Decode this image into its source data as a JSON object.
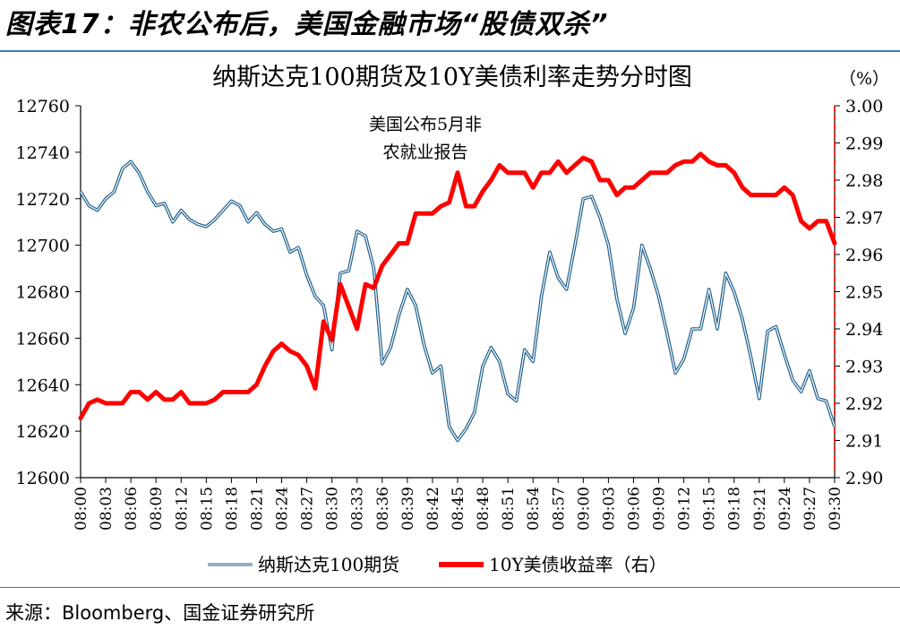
{
  "figure": {
    "title": "图表17：非农公布后，美国金融市场“股债双杀”",
    "source": "来源：Bloomberg、国金证券研究所"
  },
  "colors": {
    "nasdaq": "#1f5f8b",
    "yield": "#ff0000",
    "rule": "#3d78b5",
    "event_line": "#ff0000"
  },
  "chart_data": {
    "type": "line",
    "title": "纳斯达克100期货及10Y美债利率走势分时图",
    "right_unit": "（%）",
    "annotation": {
      "text_line1": "美国公布5月非",
      "text_line2": "农就业报告",
      "x_index": 30
    },
    "left_axis": {
      "min": 12600,
      "max": 12760,
      "ticks": [
        "12600",
        "12620",
        "12640",
        "12660",
        "12680",
        "12700",
        "12720",
        "12740",
        "12760"
      ]
    },
    "right_axis": {
      "min": 2.9,
      "max": 3.0,
      "ticks": [
        "2.90",
        "2.91",
        "2.92",
        "2.93",
        "2.94",
        "2.95",
        "2.96",
        "2.97",
        "2.98",
        "2.99",
        "3.00"
      ]
    },
    "x_ticks": [
      "08:00",
      "08:03",
      "08:06",
      "08:09",
      "08:12",
      "08:15",
      "08:18",
      "08:21",
      "08:24",
      "08:27",
      "08:30",
      "08:33",
      "08:36",
      "08:39",
      "08:42",
      "08:45",
      "08:48",
      "08:51",
      "08:54",
      "08:57",
      "09:00",
      "09:03",
      "09:06",
      "09:09",
      "09:12",
      "09:15",
      "09:18",
      "09:21",
      "09:24",
      "09:27",
      "09:30"
    ],
    "series": [
      {
        "name": "纳斯达克100期货",
        "axis": "left",
        "values": [
          12723,
          12717,
          12715,
          12720,
          12723,
          12733,
          12736,
          12731,
          12723,
          12717,
          12718,
          12710,
          12715,
          12711,
          12709,
          12708,
          12711,
          12715,
          12719,
          12717,
          12710,
          12714,
          12709,
          12706,
          12707,
          12697,
          12699,
          12687,
          12678,
          12674,
          12655,
          12688,
          12689,
          12706,
          12704,
          12690,
          12649,
          12656,
          12670,
          12681,
          12674,
          12657,
          12645,
          12648,
          12622,
          12616,
          12621,
          12628,
          12648,
          12656,
          12650,
          12636,
          12633,
          12655,
          12650,
          12678,
          12697,
          12686,
          12681,
          12700,
          12720,
          12721,
          12712,
          12700,
          12677,
          12662,
          12673,
          12700,
          12690,
          12678,
          12662,
          12645,
          12651,
          12664,
          12664,
          12681,
          12664,
          12688,
          12680,
          12668,
          12652,
          12634,
          12663,
          12665,
          12653,
          12642,
          12637,
          12646,
          12634,
          12633,
          12622
        ]
      },
      {
        "name": "10Y美债收益率（右）",
        "axis": "right",
        "values": [
          2.916,
          2.92,
          2.921,
          2.92,
          2.92,
          2.92,
          2.923,
          2.923,
          2.921,
          2.923,
          2.921,
          2.921,
          2.923,
          2.92,
          2.92,
          2.92,
          2.921,
          2.923,
          2.923,
          2.923,
          2.923,
          2.925,
          2.93,
          2.934,
          2.936,
          2.934,
          2.933,
          2.93,
          2.924,
          2.942,
          2.937,
          2.952,
          2.946,
          2.94,
          2.952,
          2.951,
          2.957,
          2.96,
          2.963,
          2.963,
          2.971,
          2.971,
          2.971,
          2.973,
          2.974,
          2.982,
          2.973,
          2.973,
          2.977,
          2.98,
          2.984,
          2.982,
          2.982,
          2.982,
          2.978,
          2.982,
          2.982,
          2.985,
          2.982,
          2.984,
          2.986,
          2.985,
          2.98,
          2.98,
          2.976,
          2.978,
          2.978,
          2.98,
          2.982,
          2.982,
          2.982,
          2.984,
          2.985,
          2.985,
          2.987,
          2.985,
          2.984,
          2.984,
          2.982,
          2.978,
          2.976,
          2.976,
          2.976,
          2.976,
          2.978,
          2.976,
          2.969,
          2.967,
          2.969,
          2.969,
          2.963
        ]
      }
    ]
  }
}
